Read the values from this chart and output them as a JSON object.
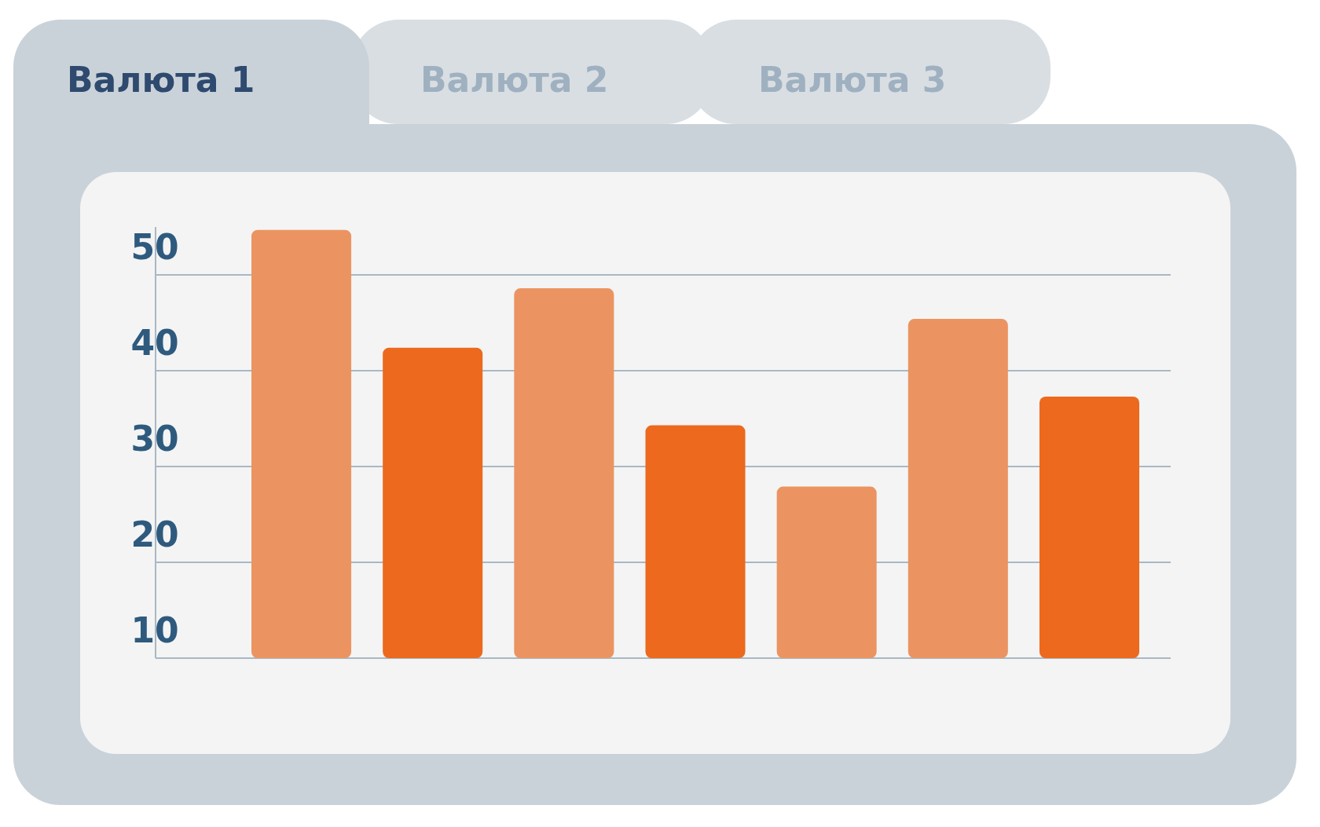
{
  "chart_data": {
    "type": "bar",
    "annotations": [
      "Валюта 1",
      "Валюта 2",
      "Валюта 3"
    ],
    "categories": [
      null,
      null,
      null,
      null,
      null,
      null,
      null
    ],
    "values": [
      54.7,
      42.4,
      48.6,
      34.3,
      27.9,
      45.4,
      37.3
    ],
    "colors": [
      "#eb9461",
      "#ec691e",
      "#eb9461",
      "#ec691e",
      "#eb9461",
      "#eb9461",
      "#ec691e"
    ],
    "ylim": [
      10,
      55
    ],
    "yticks": [
      10,
      20,
      30,
      40,
      50
    ],
    "grid": "y"
  }
}
